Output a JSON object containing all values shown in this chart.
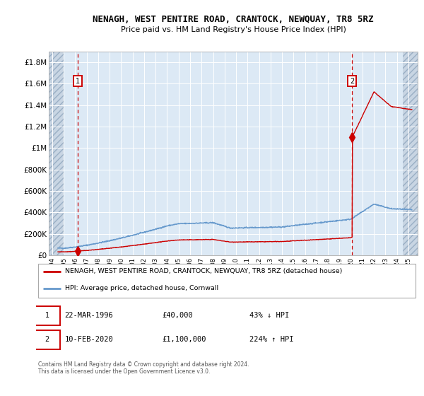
{
  "title": "NENAGH, WEST PENTIRE ROAD, CRANTOCK, NEWQUAY, TR8 5RZ",
  "subtitle": "Price paid vs. HM Land Registry's House Price Index (HPI)",
  "legend_label_red": "NENAGH, WEST PENTIRE ROAD, CRANTOCK, NEWQUAY, TR8 5RZ (detached house)",
  "legend_label_blue": "HPI: Average price, detached house, Cornwall",
  "annotation1_date": "22-MAR-1996",
  "annotation1_price": "£40,000",
  "annotation1_pct": "43% ↓ HPI",
  "annotation2_date": "10-FEB-2020",
  "annotation2_price": "£1,100,000",
  "annotation2_pct": "224% ↑ HPI",
  "footer": "Contains HM Land Registry data © Crown copyright and database right 2024.\nThis data is licensed under the Open Government Licence v3.0.",
  "ylim": [
    0,
    1900000
  ],
  "xlim_start": 1993.7,
  "xlim_end": 2025.8,
  "sale1_x": 1996.22,
  "sale1_y": 40000,
  "sale2_x": 2020.1,
  "sale2_y": 1100000,
  "red_color": "#cc0000",
  "blue_color": "#6699cc",
  "plot_bg": "#dce9f5",
  "hatch_left_end": 1995.0,
  "hatch_right_start": 2024.5,
  "yticks": [
    0,
    200000,
    400000,
    600000,
    800000,
    1000000,
    1200000,
    1400000,
    1600000,
    1800000
  ],
  "ytick_labels": [
    "£0",
    "£200K",
    "£400K",
    "£600K",
    "£800K",
    "£1M",
    "£1.2M",
    "£1.4M",
    "£1.6M",
    "£1.8M"
  ],
  "xtick_years": [
    1994,
    1995,
    1996,
    1997,
    1998,
    1999,
    2000,
    2001,
    2002,
    2003,
    2004,
    2005,
    2006,
    2007,
    2008,
    2009,
    2010,
    2011,
    2012,
    2013,
    2014,
    2015,
    2016,
    2017,
    2018,
    2019,
    2020,
    2021,
    2022,
    2023,
    2024,
    2025
  ]
}
